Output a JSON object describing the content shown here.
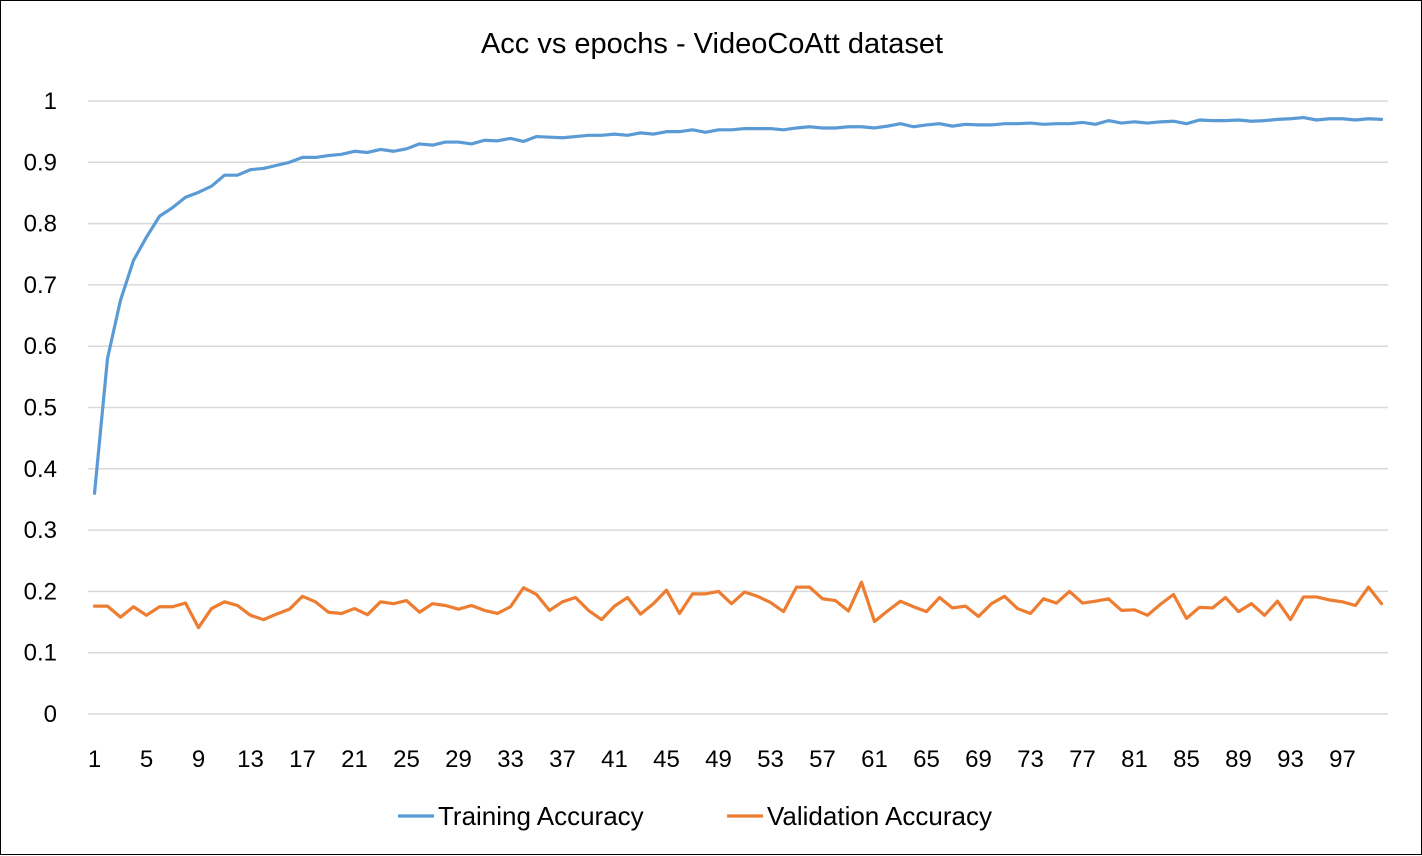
{
  "chart_data": {
    "type": "line",
    "title": "Acc vs epochs - VideoCoAtt dataset",
    "xlabel": "",
    "ylabel": "",
    "ylim": [
      0,
      1
    ],
    "yticks": [
      "0",
      "0.1",
      "0.2",
      "0.3",
      "0.4",
      "0.5",
      "0.6",
      "0.7",
      "0.8",
      "0.9",
      "1"
    ],
    "x_tick_labels": [
      "1",
      "5",
      "9",
      "13",
      "17",
      "21",
      "25",
      "29",
      "33",
      "37",
      "41",
      "45",
      "49",
      "53",
      "57",
      "61",
      "65",
      "69",
      "73",
      "77",
      "81",
      "85",
      "89",
      "93",
      "97"
    ],
    "grid": "horizontal",
    "legend_position": "bottom",
    "x": [
      1,
      2,
      3,
      4,
      5,
      6,
      7,
      8,
      9,
      10,
      11,
      12,
      13,
      14,
      15,
      16,
      17,
      18,
      19,
      20,
      21,
      22,
      23,
      24,
      25,
      26,
      27,
      28,
      29,
      30,
      31,
      32,
      33,
      34,
      35,
      36,
      37,
      38,
      39,
      40,
      41,
      42,
      43,
      44,
      45,
      46,
      47,
      48,
      49,
      50,
      51,
      52,
      53,
      54,
      55,
      56,
      57,
      58,
      59,
      60,
      61,
      62,
      63,
      64,
      65,
      66,
      67,
      68,
      69,
      70,
      71,
      72,
      73,
      74,
      75,
      76,
      77,
      78,
      79,
      80,
      81,
      82,
      83,
      84,
      85,
      86,
      87,
      88,
      89,
      90,
      91,
      92,
      93,
      94,
      95,
      96,
      97,
      98,
      99,
      100
    ],
    "series": [
      {
        "name": "Training Accuracy",
        "color": "#5b9bd5",
        "values": [
          0.36,
          0.58,
          0.675,
          0.74,
          0.778,
          0.812,
          0.826,
          0.843,
          0.851,
          0.861,
          0.879,
          0.879,
          0.888,
          0.89,
          0.895,
          0.9,
          0.908,
          0.908,
          0.911,
          0.913,
          0.918,
          0.916,
          0.921,
          0.918,
          0.922,
          0.93,
          0.928,
          0.933,
          0.933,
          0.93,
          0.936,
          0.935,
          0.939,
          0.934,
          0.942,
          0.941,
          0.94,
          0.942,
          0.944,
          0.944,
          0.946,
          0.944,
          0.948,
          0.946,
          0.95,
          0.95,
          0.953,
          0.949,
          0.953,
          0.953,
          0.955,
          0.955,
          0.955,
          0.953,
          0.956,
          0.958,
          0.956,
          0.956,
          0.958,
          0.958,
          0.956,
          0.959,
          0.963,
          0.958,
          0.961,
          0.963,
          0.959,
          0.962,
          0.961,
          0.961,
          0.963,
          0.963,
          0.964,
          0.962,
          0.963,
          0.963,
          0.965,
          0.962,
          0.968,
          0.964,
          0.966,
          0.964,
          0.966,
          0.967,
          0.963,
          0.969,
          0.968,
          0.968,
          0.969,
          0.967,
          0.968,
          0.97,
          0.971,
          0.973,
          0.969,
          0.971,
          0.971,
          0.969,
          0.971,
          0.97
        ]
      },
      {
        "name": "Validation Accuracy",
        "color": "#ed7d31",
        "values": [
          0.176,
          0.176,
          0.158,
          0.175,
          0.161,
          0.175,
          0.175,
          0.181,
          0.141,
          0.172,
          0.183,
          0.177,
          0.161,
          0.154,
          0.163,
          0.171,
          0.192,
          0.183,
          0.166,
          0.164,
          0.172,
          0.162,
          0.183,
          0.18,
          0.185,
          0.166,
          0.18,
          0.177,
          0.171,
          0.177,
          0.169,
          0.164,
          0.175,
          0.206,
          0.195,
          0.169,
          0.183,
          0.19,
          0.169,
          0.154,
          0.176,
          0.19,
          0.163,
          0.18,
          0.202,
          0.164,
          0.196,
          0.196,
          0.2,
          0.18,
          0.199,
          0.192,
          0.182,
          0.167,
          0.207,
          0.207,
          0.188,
          0.185,
          0.168,
          0.215,
          0.151,
          0.168,
          0.184,
          0.175,
          0.167,
          0.19,
          0.173,
          0.176,
          0.159,
          0.18,
          0.192,
          0.172,
          0.164,
          0.188,
          0.181,
          0.2,
          0.181,
          0.184,
          0.188,
          0.169,
          0.17,
          0.161,
          0.179,
          0.195,
          0.156,
          0.174,
          0.173,
          0.19,
          0.167,
          0.18,
          0.161,
          0.184,
          0.154,
          0.191,
          0.191,
          0.186,
          0.183,
          0.177,
          0.207,
          0.18
        ]
      }
    ]
  }
}
